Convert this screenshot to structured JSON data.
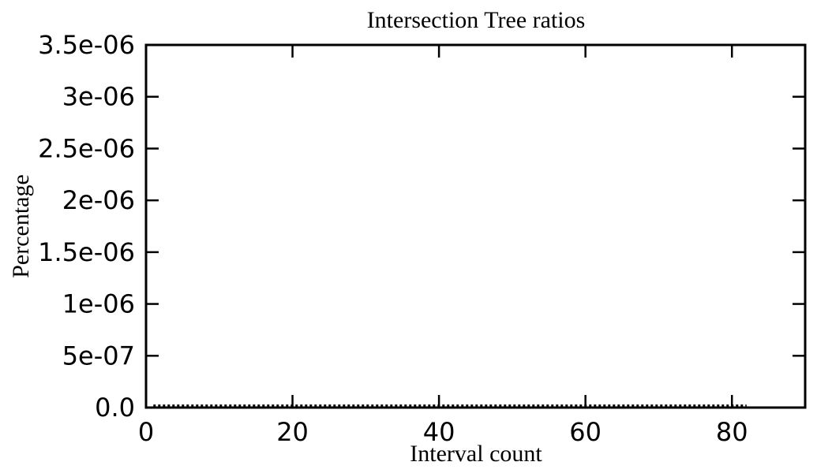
{
  "chart_data": {
    "type": "line",
    "title": "Intersection Tree ratios",
    "xlabel": "Interval count",
    "ylabel": "Percentage",
    "xlim": [
      0,
      90
    ],
    "ylim": [
      0,
      3.5e-06
    ],
    "x_ticks": [
      {
        "value": 0,
        "label": "0"
      },
      {
        "value": 20,
        "label": "20"
      },
      {
        "value": 40,
        "label": "40"
      },
      {
        "value": 60,
        "label": "60"
      },
      {
        "value": 80,
        "label": "80"
      }
    ],
    "y_ticks": [
      {
        "value": 0,
        "label": "0.0"
      },
      {
        "value": 5e-07,
        "label": "5e-07"
      },
      {
        "value": 1e-06,
        "label": "1e-06"
      },
      {
        "value": 1.5e-06,
        "label": "1.5e-06"
      },
      {
        "value": 2e-06,
        "label": "2e-06"
      },
      {
        "value": 2.5e-06,
        "label": "2.5e-06"
      },
      {
        "value": 3e-06,
        "label": "3e-06"
      },
      {
        "value": 3.5e-06,
        "label": "3.5e-06"
      }
    ],
    "grid": false,
    "series": [
      {
        "style": "dotted",
        "color": "#000000",
        "x": [
          1,
          2,
          3,
          4,
          5,
          6,
          7,
          8,
          9,
          10,
          11,
          12,
          13,
          14,
          15,
          16,
          17,
          18,
          19,
          20,
          21,
          22,
          23,
          24,
          25,
          26,
          27,
          28,
          29,
          30,
          31,
          32,
          33,
          34,
          35,
          36,
          37,
          38,
          39,
          40,
          41,
          42,
          43,
          44,
          45,
          46,
          47,
          48,
          49,
          50,
          51,
          52,
          53,
          54,
          55,
          56,
          57,
          58,
          59,
          60,
          61,
          62,
          63,
          64,
          65,
          66,
          67,
          68,
          69,
          70,
          71,
          72,
          73,
          74,
          75,
          76,
          77,
          78,
          79,
          80,
          81,
          82
        ],
        "y": [
          2e-08,
          2e-08,
          2e-08,
          2e-08,
          2e-08,
          2e-08,
          2e-08,
          2e-08,
          2e-08,
          2e-08,
          2e-08,
          2e-08,
          2e-08,
          2e-08,
          2e-08,
          2e-08,
          2e-08,
          2e-08,
          2e-08,
          2e-08,
          2e-08,
          2e-08,
          2e-08,
          2e-08,
          2e-08,
          2e-08,
          2e-08,
          2e-08,
          2e-08,
          2e-08,
          2e-08,
          2e-08,
          2e-08,
          2e-08,
          2e-08,
          2e-08,
          2e-08,
          2e-08,
          2e-08,
          2e-08,
          2e-08,
          2e-08,
          2e-08,
          2e-08,
          2e-08,
          2e-08,
          2e-08,
          2e-08,
          2e-08,
          2e-08,
          2e-08,
          2e-08,
          2e-08,
          2e-08,
          2e-08,
          2e-08,
          2e-08,
          2e-08,
          2e-08,
          2e-08,
          2e-08,
          2e-08,
          2e-08,
          2e-08,
          2e-08,
          2e-08,
          2e-08,
          2e-08,
          2e-08,
          2e-08,
          2e-08,
          2e-08,
          2e-08,
          2e-08,
          2e-08,
          2e-08,
          2e-08,
          2e-08,
          2e-08,
          2e-08,
          2e-08,
          2e-08
        ]
      }
    ]
  }
}
